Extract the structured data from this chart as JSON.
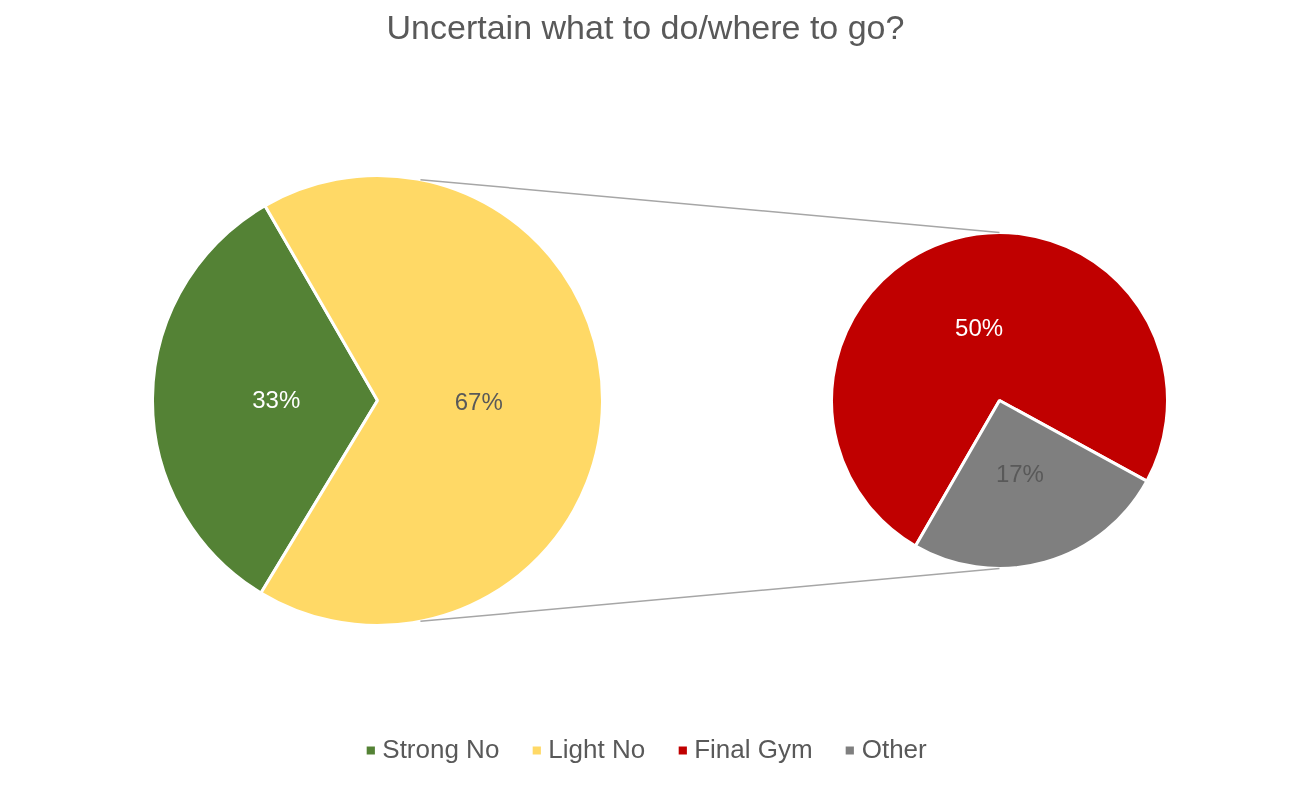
{
  "chart_data": [
    {
      "type": "pie",
      "title": "Uncertain what to do/where to go?",
      "categories": [
        "Strong No",
        "Light No"
      ],
      "values": [
        33,
        67
      ],
      "colors": [
        "#548235",
        "#ffd966"
      ],
      "value_labels": [
        "33%",
        "67%"
      ],
      "legend": "bottom"
    },
    {
      "type": "pie",
      "categories": [
        "Final Gym",
        "Other"
      ],
      "values": [
        50,
        17
      ],
      "colors": [
        "#c00000",
        "#7f7f7f"
      ],
      "value_labels": [
        "50%",
        "17%"
      ],
      "legend": "bottom"
    }
  ]
}
